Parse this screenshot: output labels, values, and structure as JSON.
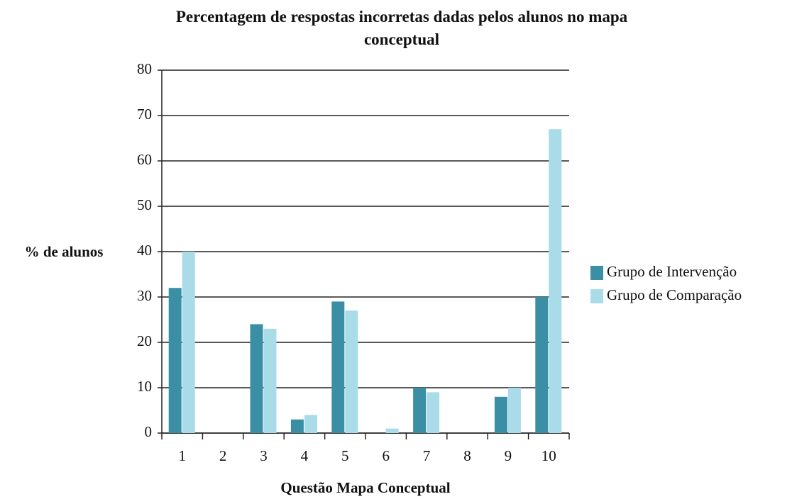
{
  "chart_data": {
    "type": "bar",
    "title": "Percentagem de respostas incorretas dadas pelos alunos no mapa conceptual",
    "x_label": "Questão Mapa Conceptual",
    "y_label": "% de alunos",
    "categories": [
      "1",
      "2",
      "3",
      "4",
      "5",
      "6",
      "7",
      "8",
      "9",
      "10"
    ],
    "series": [
      {
        "name": "Grupo de Intervenção",
        "color": "#3a8fa5",
        "values": [
          32,
          0,
          24,
          3,
          29,
          0,
          10,
          0,
          8,
          30
        ]
      },
      {
        "name": "Grupo de Comparação",
        "color": "#a9dbe8",
        "values": [
          40,
          0,
          23,
          4,
          27,
          1,
          9,
          0,
          10,
          67
        ]
      }
    ],
    "ylim": [
      0,
      80
    ],
    "yticks": [
      0,
      10,
      20,
      30,
      40,
      50,
      60,
      70,
      80
    ],
    "grid": true,
    "legend": "right"
  }
}
